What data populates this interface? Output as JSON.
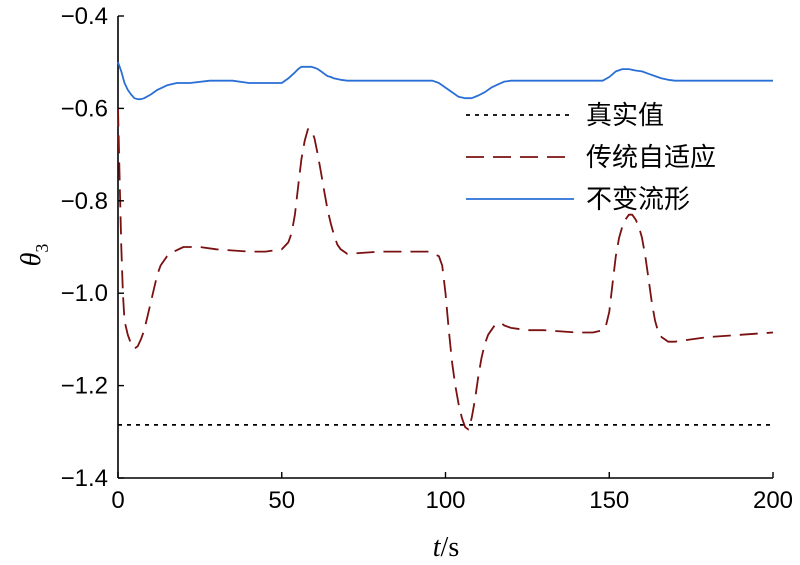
{
  "chart_data": {
    "type": "line",
    "xlabel_italic": "t",
    "xlabel_unit": "/s",
    "ylabel_symbol": "θ",
    "ylabel_subscript": "3",
    "xlim": [
      0,
      200
    ],
    "ylim": [
      -1.4,
      -0.4
    ],
    "xticks": [
      0,
      50,
      100,
      150,
      200
    ],
    "xtick_labels": [
      "0",
      "50",
      "100",
      "150",
      "200"
    ],
    "yticks": [
      -1.4,
      -1.2,
      -1.0,
      -0.8,
      -0.6,
      -0.4
    ],
    "ytick_labels": [
      "−1.4",
      "−1.2",
      "−1.0",
      "−0.8",
      "−0.6",
      "−0.4"
    ],
    "grid": false,
    "legend_position": "top-right",
    "series": [
      {
        "name": "真实值",
        "style": "dotted",
        "color": "#000000",
        "x": [
          0,
          200
        ],
        "y": [
          -1.285,
          -1.285
        ]
      },
      {
        "name": "传统自适应",
        "style": "dashed",
        "color": "#7a1010",
        "x": [
          0,
          0.5,
          1,
          1.5,
          2,
          3,
          4,
          5,
          6,
          7,
          8,
          9,
          10,
          11,
          12,
          13,
          14,
          15,
          17,
          20,
          25,
          30,
          40,
          45,
          50,
          52,
          53,
          54,
          55,
          56,
          57,
          58,
          59,
          60,
          61,
          62,
          63,
          64,
          65,
          66,
          67,
          68,
          70,
          80,
          90,
          95,
          98,
          99,
          100,
          101,
          102,
          103,
          104,
          105,
          106,
          107,
          108,
          109,
          110,
          111,
          112,
          113,
          114,
          115,
          116,
          117,
          118,
          120,
          125,
          130,
          140,
          145,
          148,
          149,
          150,
          151,
          152,
          153,
          154,
          155,
          156,
          157,
          158,
          159,
          160,
          161,
          162,
          163,
          164,
          165,
          166,
          167,
          168,
          169,
          170,
          175,
          180,
          190,
          200
        ],
        "y": [
          -0.6,
          -0.75,
          -0.9,
          -1.0,
          -1.06,
          -1.09,
          -1.11,
          -1.12,
          -1.115,
          -1.1,
          -1.08,
          -1.05,
          -1.02,
          -0.99,
          -0.96,
          -0.94,
          -0.93,
          -0.92,
          -0.91,
          -0.9,
          -0.9,
          -0.905,
          -0.91,
          -0.91,
          -0.905,
          -0.89,
          -0.87,
          -0.83,
          -0.77,
          -0.71,
          -0.67,
          -0.645,
          -0.645,
          -0.665,
          -0.7,
          -0.74,
          -0.78,
          -0.82,
          -0.85,
          -0.875,
          -0.895,
          -0.905,
          -0.915,
          -0.91,
          -0.91,
          -0.91,
          -0.92,
          -0.94,
          -1.0,
          -1.08,
          -1.15,
          -1.2,
          -1.24,
          -1.27,
          -1.29,
          -1.295,
          -1.27,
          -1.23,
          -1.18,
          -1.14,
          -1.11,
          -1.09,
          -1.08,
          -1.07,
          -1.065,
          -1.065,
          -1.07,
          -1.075,
          -1.08,
          -1.08,
          -1.085,
          -1.085,
          -1.08,
          -1.07,
          -1.04,
          -0.98,
          -0.92,
          -0.88,
          -0.855,
          -0.84,
          -0.83,
          -0.83,
          -0.84,
          -0.855,
          -0.88,
          -0.92,
          -0.97,
          -1.02,
          -1.06,
          -1.085,
          -1.095,
          -1.1,
          -1.105,
          -1.105,
          -1.105,
          -1.1,
          -1.095,
          -1.09,
          -1.085
        ]
      },
      {
        "name": "不变流形",
        "style": "solid",
        "color": "#2a6fd6",
        "x": [
          0,
          1,
          2,
          3,
          4,
          5,
          6,
          7,
          8,
          10,
          12,
          15,
          18,
          22,
          28,
          35,
          40,
          45,
          50,
          52,
          54,
          55,
          56,
          57,
          58,
          59,
          60,
          61,
          62,
          63,
          64,
          65,
          66,
          68,
          70,
          80,
          90,
          96,
          98,
          100,
          102,
          104,
          106,
          108,
          110,
          112,
          114,
          116,
          118,
          120,
          125,
          130,
          140,
          148,
          150,
          152,
          154,
          156,
          158,
          160,
          162,
          164,
          166,
          168,
          170,
          180,
          190,
          200
        ],
        "y": [
          -0.5,
          -0.52,
          -0.545,
          -0.56,
          -0.57,
          -0.578,
          -0.58,
          -0.58,
          -0.578,
          -0.57,
          -0.56,
          -0.55,
          -0.545,
          -0.545,
          -0.54,
          -0.54,
          -0.545,
          -0.545,
          -0.545,
          -0.535,
          -0.522,
          -0.515,
          -0.51,
          -0.51,
          -0.51,
          -0.51,
          -0.512,
          -0.515,
          -0.52,
          -0.525,
          -0.53,
          -0.532,
          -0.535,
          -0.538,
          -0.54,
          -0.54,
          -0.54,
          -0.54,
          -0.545,
          -0.555,
          -0.565,
          -0.575,
          -0.578,
          -0.578,
          -0.572,
          -0.565,
          -0.555,
          -0.548,
          -0.542,
          -0.54,
          -0.54,
          -0.54,
          -0.54,
          -0.54,
          -0.532,
          -0.52,
          -0.515,
          -0.515,
          -0.518,
          -0.52,
          -0.525,
          -0.53,
          -0.535,
          -0.538,
          -0.54,
          -0.54,
          -0.54,
          -0.54
        ]
      }
    ]
  }
}
